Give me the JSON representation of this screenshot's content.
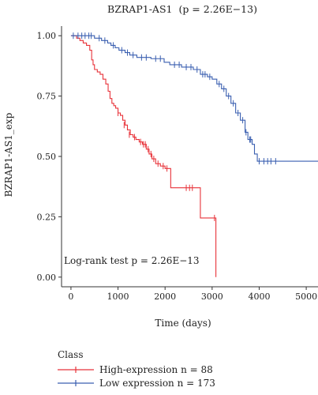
{
  "chart_data": {
    "type": "line",
    "title": "BZRAP1-AS1",
    "title_stat": "(p = 2.26E−13)",
    "xlabel": "Time (days)",
    "ylabel": "BZRAP1-AS1_exp",
    "xlim": [
      -200,
      5250
    ],
    "ylim": [
      -0.04,
      1.04
    ],
    "x_ticks": [
      0,
      1000,
      2000,
      3000,
      4000,
      5000
    ],
    "y_ticks": [
      0.0,
      0.25,
      0.5,
      0.75,
      1.0
    ],
    "y_tick_labels": [
      "0.00",
      "0.25",
      "0.50",
      "0.75",
      "1.00"
    ],
    "annotation": "Log-rank test p = 2.26E−13",
    "legend_title": "Class",
    "legend_position": "bottom",
    "series": [
      {
        "name": "High-expression n = 88",
        "color": "#e8333a",
        "steps": [
          [
            0,
            1.0
          ],
          [
            120,
            0.99
          ],
          [
            190,
            0.98
          ],
          [
            260,
            0.97
          ],
          [
            330,
            0.96
          ],
          [
            400,
            0.94
          ],
          [
            440,
            0.9
          ],
          [
            470,
            0.88
          ],
          [
            500,
            0.86
          ],
          [
            560,
            0.85
          ],
          [
            620,
            0.84
          ],
          [
            680,
            0.82
          ],
          [
            740,
            0.8
          ],
          [
            790,
            0.77
          ],
          [
            830,
            0.74
          ],
          [
            870,
            0.72
          ],
          [
            910,
            0.71
          ],
          [
            950,
            0.7
          ],
          [
            1000,
            0.68
          ],
          [
            1050,
            0.67
          ],
          [
            1100,
            0.65
          ],
          [
            1150,
            0.63
          ],
          [
            1200,
            0.61
          ],
          [
            1260,
            0.59
          ],
          [
            1320,
            0.58
          ],
          [
            1380,
            0.57
          ],
          [
            1450,
            0.56
          ],
          [
            1520,
            0.55
          ],
          [
            1600,
            0.53
          ],
          [
            1660,
            0.51
          ],
          [
            1720,
            0.49
          ],
          [
            1800,
            0.47
          ],
          [
            1900,
            0.46
          ],
          [
            2000,
            0.45
          ],
          [
            2120,
            0.37
          ],
          [
            2750,
            0.245
          ],
          [
            3080,
            0.0
          ]
        ],
        "censors": [
          [
            1000,
            0.68
          ],
          [
            1130,
            0.63
          ],
          [
            1240,
            0.59
          ],
          [
            1350,
            0.58
          ],
          [
            1480,
            0.56
          ],
          [
            1540,
            0.55
          ],
          [
            1580,
            0.55
          ],
          [
            1640,
            0.53
          ],
          [
            1700,
            0.51
          ],
          [
            1760,
            0.49
          ],
          [
            1850,
            0.47
          ],
          [
            1960,
            0.46
          ],
          [
            2040,
            0.45
          ],
          [
            2450,
            0.37
          ],
          [
            2520,
            0.37
          ],
          [
            2580,
            0.37
          ],
          [
            3050,
            0.245
          ]
        ],
        "end_x": 3080
      },
      {
        "name": "Low expression n = 173",
        "color": "#3a5fb0",
        "steps": [
          [
            0,
            1.0
          ],
          [
            500,
            0.99
          ],
          [
            650,
            0.98
          ],
          [
            780,
            0.97
          ],
          [
            850,
            0.96
          ],
          [
            940,
            0.95
          ],
          [
            1020,
            0.94
          ],
          [
            1150,
            0.93
          ],
          [
            1250,
            0.92
          ],
          [
            1400,
            0.91
          ],
          [
            1700,
            0.905
          ],
          [
            1980,
            0.89
          ],
          [
            2100,
            0.88
          ],
          [
            2350,
            0.87
          ],
          [
            2600,
            0.86
          ],
          [
            2750,
            0.84
          ],
          [
            2900,
            0.83
          ],
          [
            3000,
            0.82
          ],
          [
            3100,
            0.8
          ],
          [
            3200,
            0.78
          ],
          [
            3300,
            0.75
          ],
          [
            3400,
            0.72
          ],
          [
            3500,
            0.68
          ],
          [
            3600,
            0.65
          ],
          [
            3700,
            0.6
          ],
          [
            3760,
            0.57
          ],
          [
            3850,
            0.55
          ],
          [
            3900,
            0.51
          ],
          [
            3960,
            0.48
          ]
        ],
        "censors": [
          [
            50,
            1.0
          ],
          [
            150,
            1.0
          ],
          [
            230,
            1.0
          ],
          [
            300,
            1.0
          ],
          [
            380,
            1.0
          ],
          [
            430,
            1.0
          ],
          [
            600,
            0.99
          ],
          [
            720,
            0.98
          ],
          [
            900,
            0.96
          ],
          [
            1080,
            0.94
          ],
          [
            1200,
            0.93
          ],
          [
            1320,
            0.92
          ],
          [
            1500,
            0.91
          ],
          [
            1600,
            0.91
          ],
          [
            1800,
            0.905
          ],
          [
            1900,
            0.905
          ],
          [
            2200,
            0.88
          ],
          [
            2300,
            0.88
          ],
          [
            2450,
            0.87
          ],
          [
            2550,
            0.87
          ],
          [
            2680,
            0.86
          ],
          [
            2800,
            0.84
          ],
          [
            2850,
            0.84
          ],
          [
            2950,
            0.83
          ],
          [
            3150,
            0.8
          ],
          [
            3250,
            0.78
          ],
          [
            3350,
            0.75
          ],
          [
            3450,
            0.72
          ],
          [
            3550,
            0.68
          ],
          [
            3650,
            0.65
          ],
          [
            3720,
            0.6
          ],
          [
            3800,
            0.57
          ],
          [
            3820,
            0.57
          ],
          [
            4000,
            0.48
          ],
          [
            4100,
            0.48
          ],
          [
            4180,
            0.48
          ],
          [
            4250,
            0.48
          ],
          [
            4350,
            0.48
          ]
        ],
        "end_x": 5250
      }
    ]
  }
}
